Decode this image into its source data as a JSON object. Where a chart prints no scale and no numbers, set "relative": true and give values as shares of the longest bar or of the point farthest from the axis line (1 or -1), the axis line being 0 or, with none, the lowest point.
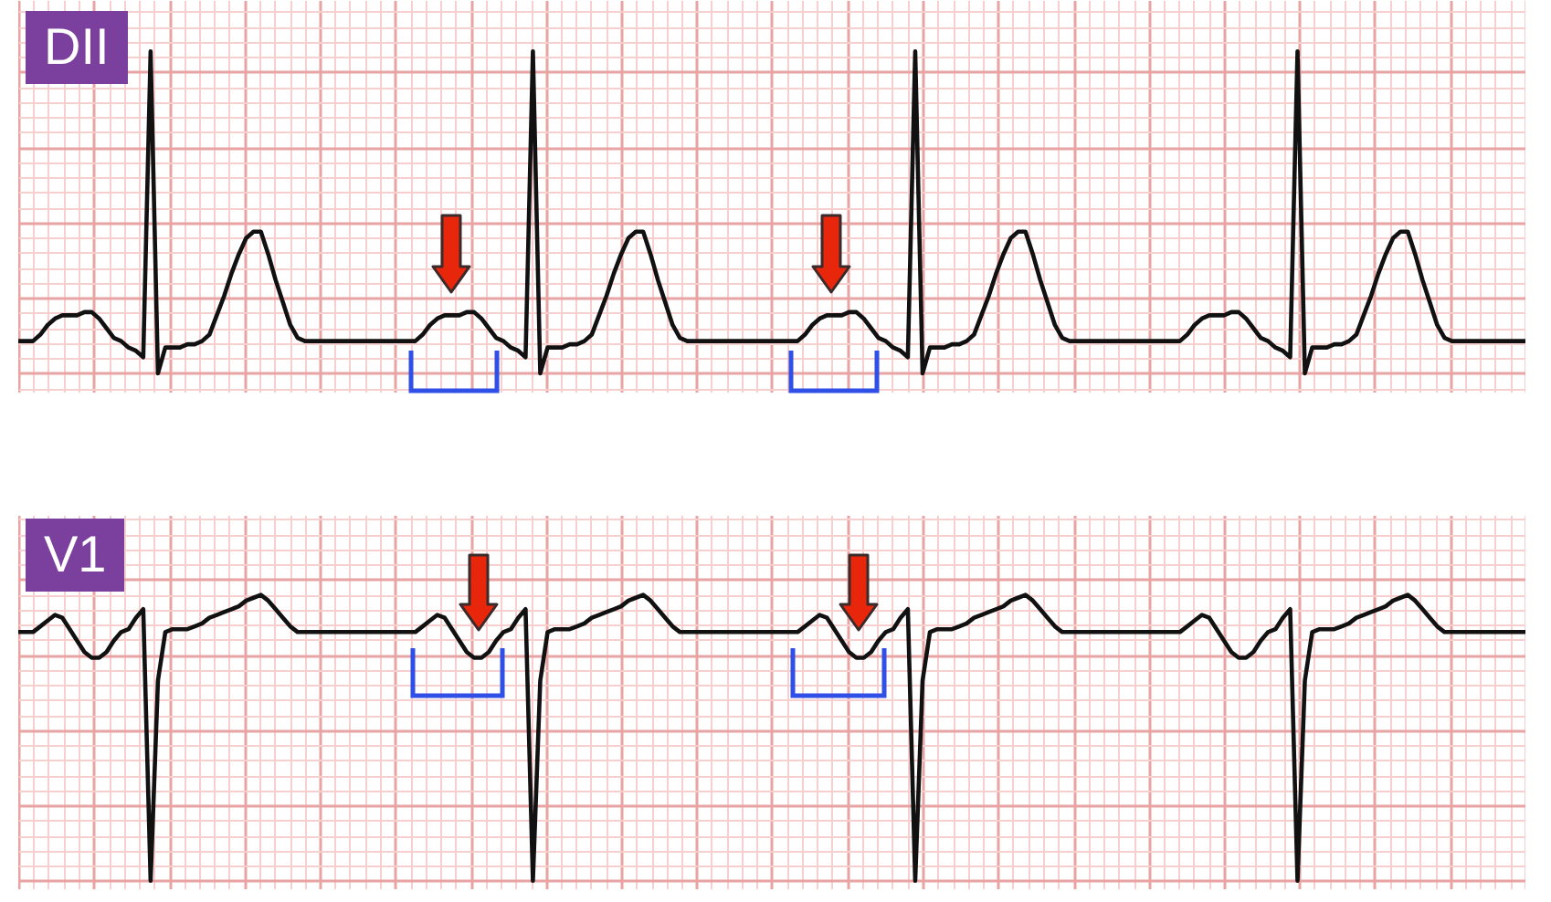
{
  "chart_data": [
    {
      "type": "line",
      "title": "DII",
      "relative": true,
      "grid": true,
      "color": "#111111",
      "categories": [
        null,
        null,
        null,
        null,
        null,
        null,
        null,
        null,
        null,
        null,
        null,
        null,
        null,
        null,
        null,
        null,
        null,
        null,
        null,
        null,
        null,
        null,
        null,
        null,
        null,
        null,
        null,
        null,
        null,
        null,
        null,
        null,
        null,
        null,
        null,
        null,
        null,
        null,
        null,
        null,
        null,
        null,
        null,
        null,
        null,
        null,
        null,
        null,
        null,
        null,
        null,
        null,
        null,
        null,
        null,
        null,
        null,
        null,
        null,
        null,
        null,
        null,
        null,
        null,
        null,
        null,
        null,
        null,
        null,
        null,
        null,
        null,
        null,
        null,
        null,
        null,
        null,
        null,
        null,
        null,
        null,
        null,
        null,
        null,
        null,
        null,
        null,
        null,
        null,
        null,
        null,
        null,
        null,
        null,
        null,
        null,
        null,
        null,
        null,
        null,
        null,
        null,
        null,
        null,
        null,
        null,
        null,
        null,
        null,
        null,
        null,
        null,
        null,
        null,
        null,
        null,
        null,
        null,
        null,
        null,
        null,
        null,
        null,
        null,
        null,
        null,
        null,
        null,
        null,
        null,
        null,
        null,
        null,
        null,
        null,
        null,
        null,
        null,
        null,
        null,
        null,
        null,
        null,
        null,
        null,
        null,
        null,
        null,
        null,
        null,
        null,
        null,
        null,
        null,
        null,
        null,
        null,
        null,
        null,
        null,
        null,
        null,
        null,
        null,
        null,
        null,
        null,
        null,
        null,
        null,
        null,
        null,
        null,
        null,
        null,
        null,
        null,
        null,
        null,
        null,
        null,
        null,
        null,
        null,
        null,
        null,
        null,
        null,
        null,
        null,
        null,
        null,
        null,
        null,
        null,
        null,
        null,
        null,
        null,
        null,
        null,
        null,
        null,
        null,
        null,
        null
      ],
      "values": [
        0.1,
        0.1,
        0.1,
        0.12,
        0.15,
        0.17,
        0.18,
        0.18,
        0.18,
        0.19,
        0.19,
        0.17,
        0.14,
        0.11,
        0.1,
        0.08,
        0.07,
        0.05,
        1,
        0,
        0.08,
        0.08,
        0.08,
        0.09,
        0.09,
        0.1,
        0.12,
        0.18,
        0.24,
        0.31,
        0.37,
        0.42,
        0.44,
        0.44,
        0.37,
        0.29,
        0.22,
        0.15,
        0.11,
        0.1,
        0.1,
        0.1,
        0.1,
        0.1,
        0.1,
        0.1,
        0.1,
        0.1,
        0.1,
        0.1,
        0.1,
        0.1,
        0.1,
        0.1,
        0.1,
        0.12,
        0.15,
        0.17,
        0.18,
        0.18,
        0.18,
        0.19,
        0.19,
        0.17,
        0.14,
        0.11,
        0.1,
        0.08,
        0.07,
        0.05,
        1,
        0,
        0.08,
        0.08,
        0.08,
        0.09,
        0.09,
        0.1,
        0.12,
        0.18,
        0.24,
        0.31,
        0.37,
        0.42,
        0.44,
        0.44,
        0.37,
        0.29,
        0.22,
        0.15,
        0.11,
        0.1,
        0.1,
        0.1,
        0.1,
        0.1,
        0.1,
        0.1,
        0.1,
        0.1,
        0.1,
        0.1,
        0.1,
        0.1,
        0.1,
        0.1,
        0.1,
        0.12,
        0.15,
        0.17,
        0.18,
        0.18,
        0.18,
        0.19,
        0.19,
        0.17,
        0.14,
        0.11,
        0.1,
        0.08,
        0.07,
        0.05,
        1,
        0,
        0.08,
        0.08,
        0.08,
        0.09,
        0.09,
        0.1,
        0.12,
        0.18,
        0.24,
        0.31,
        0.37,
        0.42,
        0.44,
        0.44,
        0.37,
        0.29,
        0.22,
        0.15,
        0.11,
        0.1,
        0.1,
        0.1,
        0.1,
        0.1,
        0.1,
        0.1,
        0.1,
        0.1,
        0.1,
        0.1,
        0.1,
        0.1,
        0.1,
        0.1,
        0.1,
        0.12,
        0.15,
        0.17,
        0.18,
        0.18,
        0.18,
        0.19,
        0.19,
        0.17,
        0.14,
        0.11,
        0.1,
        0.08,
        0.07,
        0.05,
        1,
        0,
        0.08,
        0.08,
        0.08,
        0.09,
        0.09,
        0.1,
        0.12,
        0.18,
        0.24,
        0.31,
        0.37,
        0.42,
        0.44,
        0.44,
        0.37,
        0.29,
        0.22,
        0.15,
        0.11,
        0.1,
        0.1,
        0.1,
        0.1,
        0.1,
        0.1,
        0.1,
        0.1,
        0.1,
        0.1,
        0.1
      ]
    },
    {
      "type": "line",
      "title": "V1",
      "relative": true,
      "grid": true,
      "color": "#111111",
      "categories": [
        null,
        null,
        null,
        null,
        null,
        null,
        null,
        null,
        null,
        null,
        null,
        null,
        null,
        null,
        null,
        null,
        null,
        null,
        null,
        null,
        null,
        null,
        null,
        null,
        null,
        null,
        null,
        null,
        null,
        null,
        null,
        null,
        null,
        null,
        null,
        null,
        null,
        null,
        null,
        null,
        null,
        null,
        null,
        null,
        null,
        null,
        null,
        null,
        null,
        null,
        null,
        null,
        null,
        null,
        null,
        null,
        null,
        null,
        null,
        null,
        null,
        null,
        null,
        null,
        null,
        null,
        null,
        null,
        null,
        null,
        null,
        null,
        null,
        null,
        null,
        null,
        null,
        null,
        null,
        null,
        null,
        null,
        null,
        null,
        null,
        null,
        null,
        null,
        null,
        null,
        null,
        null,
        null,
        null,
        null,
        null,
        null,
        null,
        null,
        null,
        null,
        null,
        null,
        null,
        null,
        null,
        null,
        null,
        null,
        null,
        null,
        null,
        null,
        null,
        null,
        null,
        null,
        null,
        null,
        null,
        null,
        null,
        null,
        null,
        null,
        null,
        null,
        null,
        null,
        null,
        null,
        null,
        null,
        null,
        null,
        null,
        null,
        null,
        null,
        null,
        null,
        null,
        null,
        null,
        null,
        null,
        null,
        null,
        null,
        null,
        null,
        null,
        null,
        null,
        null,
        null,
        null,
        null,
        null,
        null,
        null,
        null,
        null,
        null,
        null,
        null,
        null,
        null,
        null,
        null,
        null,
        null,
        null,
        null,
        null,
        null,
        null,
        null,
        null,
        null,
        null,
        null,
        null,
        null,
        null,
        null,
        null,
        null,
        null,
        null,
        null,
        null,
        null,
        null,
        null,
        null,
        null,
        null,
        null,
        null,
        null,
        null,
        null,
        null,
        null,
        null
      ],
      "values": [
        0.87,
        0.87,
        0.87,
        0.89,
        0.91,
        0.93,
        0.92,
        0.88,
        0.84,
        0.8,
        0.78,
        0.78,
        0.8,
        0.84,
        0.87,
        0.88,
        0.92,
        0.95,
        0,
        0.7,
        0.87,
        0.88,
        0.88,
        0.88,
        0.89,
        0.9,
        0.92,
        0.93,
        0.94,
        0.95,
        0.96,
        0.98,
        0.99,
        1,
        0.98,
        0.95,
        0.92,
        0.89,
        0.87,
        0.87,
        0.87,
        0.87,
        0.87,
        0.87,
        0.87,
        0.87,
        0.87,
        0.87,
        0.87,
        0.87,
        0.87,
        0.87,
        0.87,
        0.87,
        0.87,
        0.89,
        0.91,
        0.93,
        0.92,
        0.88,
        0.84,
        0.8,
        0.78,
        0.78,
        0.8,
        0.84,
        0.87,
        0.88,
        0.92,
        0.95,
        0,
        0.7,
        0.87,
        0.88,
        0.88,
        0.88,
        0.89,
        0.9,
        0.92,
        0.93,
        0.94,
        0.95,
        0.96,
        0.98,
        0.99,
        1,
        0.98,
        0.95,
        0.92,
        0.89,
        0.87,
        0.87,
        0.87,
        0.87,
        0.87,
        0.87,
        0.87,
        0.87,
        0.87,
        0.87,
        0.87,
        0.87,
        0.87,
        0.87,
        0.87,
        0.87,
        0.87,
        0.89,
        0.91,
        0.93,
        0.92,
        0.88,
        0.84,
        0.8,
        0.78,
        0.78,
        0.8,
        0.84,
        0.87,
        0.88,
        0.92,
        0.95,
        0,
        0.7,
        0.87,
        0.88,
        0.88,
        0.88,
        0.89,
        0.9,
        0.92,
        0.93,
        0.94,
        0.95,
        0.96,
        0.98,
        0.99,
        1,
        0.98,
        0.95,
        0.92,
        0.89,
        0.87,
        0.87,
        0.87,
        0.87,
        0.87,
        0.87,
        0.87,
        0.87,
        0.87,
        0.87,
        0.87,
        0.87,
        0.87,
        0.87,
        0.87,
        0.87,
        0.87,
        0.89,
        0.91,
        0.93,
        0.92,
        0.88,
        0.84,
        0.8,
        0.78,
        0.78,
        0.8,
        0.84,
        0.87,
        0.88,
        0.92,
        0.95,
        0,
        0.7,
        0.87,
        0.88,
        0.88,
        0.88,
        0.89,
        0.9,
        0.92,
        0.93,
        0.94,
        0.95,
        0.96,
        0.98,
        0.99,
        1,
        0.98,
        0.95,
        0.92,
        0.89,
        0.87,
        0.87,
        0.87,
        0.87,
        0.87,
        0.87,
        0.87,
        0.87,
        0.87,
        0.87,
        0.87,
        0.87
      ]
    }
  ]
}
